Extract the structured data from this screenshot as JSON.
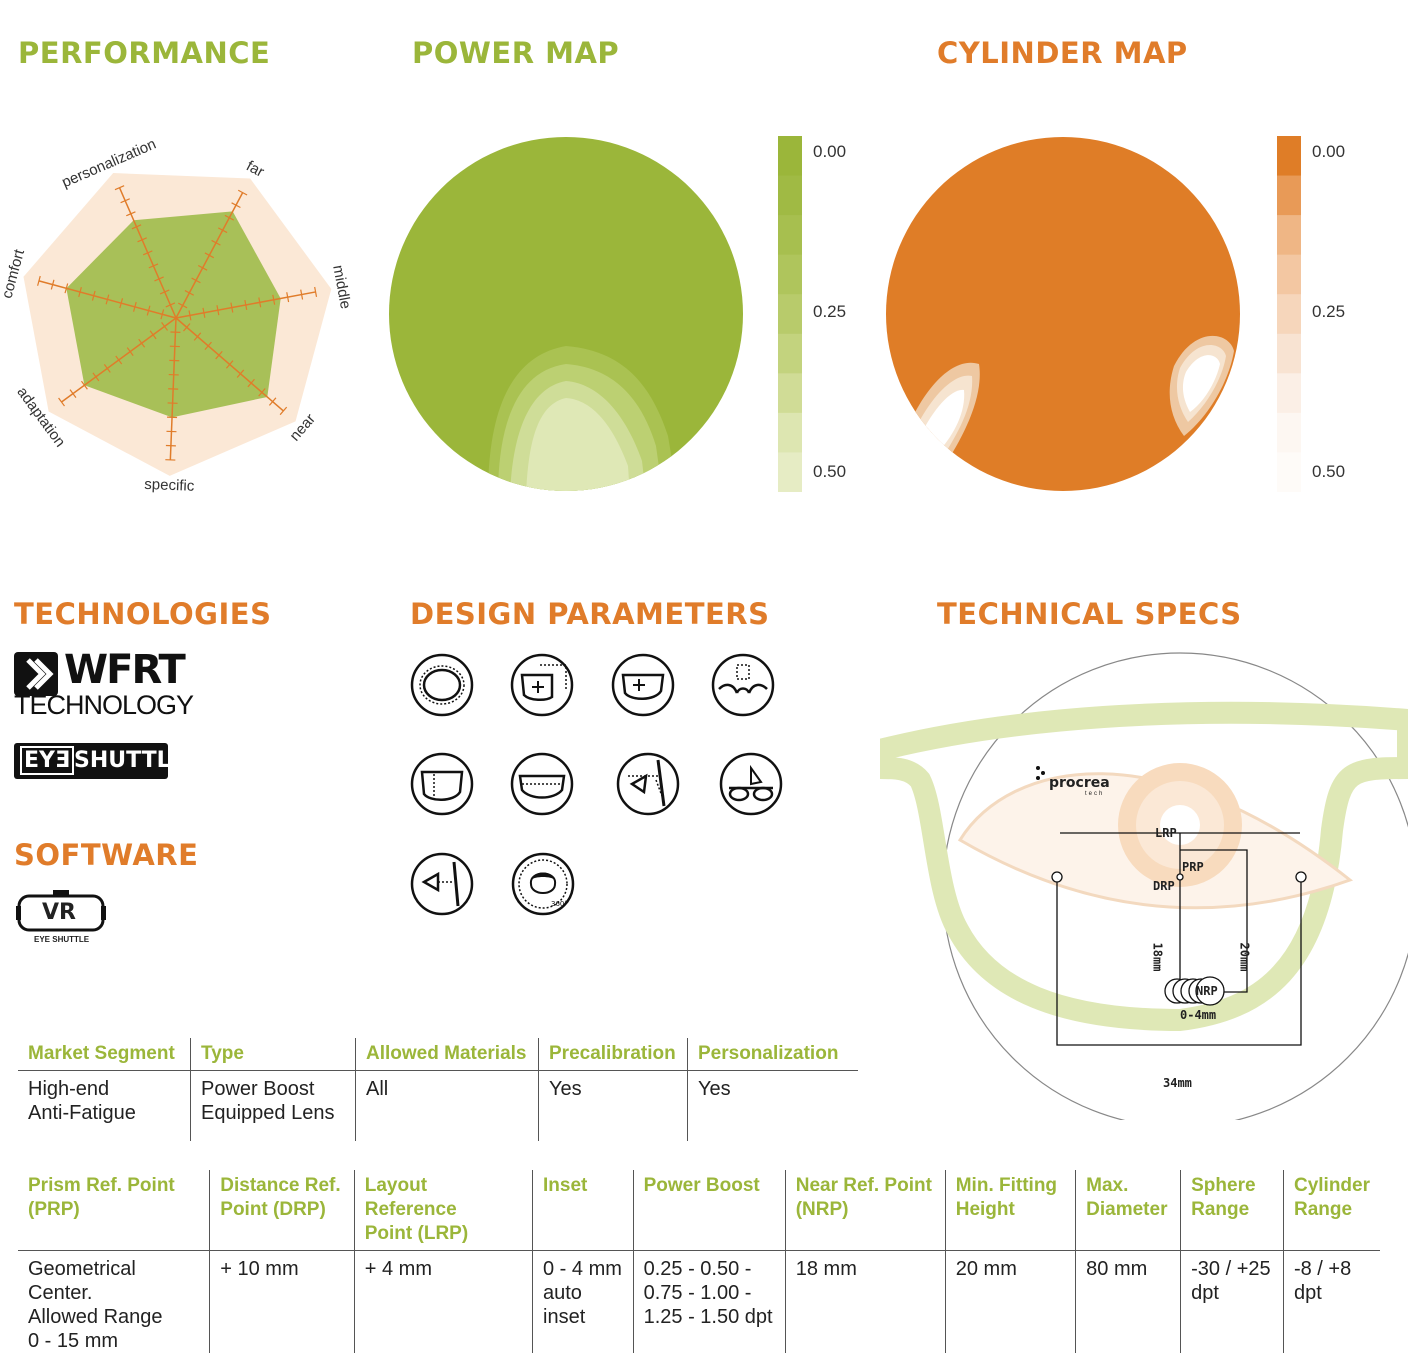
{
  "sections": {
    "performance": "PERFORMANCE",
    "power_map": "POWER MAP",
    "cylinder_map": "CYLINDER MAP",
    "technologies": "TECHNOLOGIES",
    "design_parameters": "DESIGN PARAMETERS",
    "technical_specs": "TECHNICAL SPECS",
    "software": "SOFTWARE"
  },
  "radar": {
    "axes": [
      "far",
      "middle",
      "near",
      "specific",
      "adaptation",
      "comfort",
      "personalization"
    ],
    "values": [
      0.85,
      0.75,
      0.85,
      0.7,
      0.8,
      0.8,
      0.75
    ],
    "max": 1.0
  },
  "power_scale": [
    "0.00",
    "0.25",
    "0.50"
  ],
  "cylinder_scale": [
    "0.00",
    "0.25",
    "0.50"
  ],
  "colors": {
    "green": "#9bb63a",
    "orange": "#e07c2a",
    "radar_bg": "#fbe8d6",
    "radar_fill": "#9fbb4a"
  },
  "tech": {
    "wfrt": "WFRT",
    "technology": "TECHNOLOGY",
    "eyeshuttle_a": "EYƎ",
    "eyeshuttle_b": "SHUTTLE",
    "vr": "VR",
    "vr_caption": "EYE SHUTTLE"
  },
  "specs_diagram": {
    "brand": "procrea",
    "brand_sub": "tech",
    "lrp": "LRP",
    "prp": "PRP",
    "drp": "DRP",
    "nrp": "NRP",
    "d18": "18mm",
    "d20": "20mm",
    "inset": "0-4mm",
    "width": "34mm"
  },
  "table1": {
    "headers": [
      "Market Segment",
      "Type",
      "Allowed Materials",
      "Precalibration",
      "Personalization"
    ],
    "row": [
      "High-end\nAnti-Fatigue",
      "Power Boost\nEquipped Lens",
      "All",
      "Yes",
      "Yes"
    ]
  },
  "table2": {
    "headers": [
      "Prism Ref. Point\n(PRP)",
      "Distance Ref.\nPoint (DRP)",
      "Layout Reference\nPoint (LRP)",
      "Inset",
      "Power Boost",
      "Near Ref. Point\n(NRP)",
      "Min. Fitting\nHeight",
      "Max.\nDiameter",
      "Sphere\nRange",
      "Cylinder\nRange"
    ],
    "row": [
      "Geometrical Center.\nAllowed Range\n0 - 15 mm",
      "+ 10 mm",
      "+ 4 mm",
      "0 - 4 mm\nauto\ninset",
      "0.25 - 0.50 -\n0.75 - 1.00 -\n1.25 - 1.50 dpt",
      "18 mm",
      "20  mm",
      "80 mm",
      "-30 / +25\ndpt",
      "-8 / +8\ndpt"
    ]
  }
}
